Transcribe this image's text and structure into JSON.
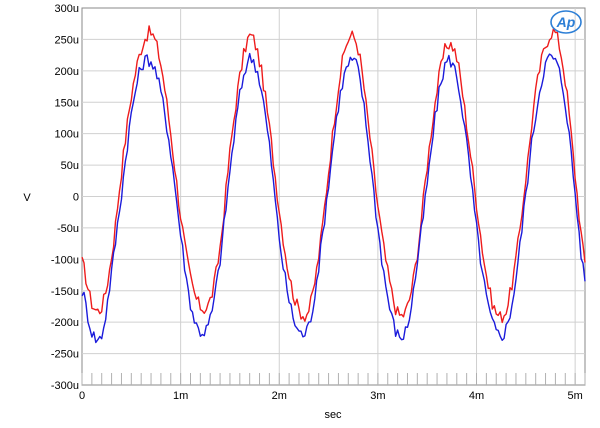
{
  "chart_data": {
    "type": "line",
    "title": "",
    "xlabel": "sec",
    "ylabel": "V",
    "xlim": [
      0,
      0.0051
    ],
    "ylim": [
      -0.0003,
      0.0003
    ],
    "grid": true,
    "logo_text": "Ap",
    "x_ticks": [
      {
        "value": 0,
        "label": "0"
      },
      {
        "value": 0.001,
        "label": "1m"
      },
      {
        "value": 0.002,
        "label": "2m"
      },
      {
        "value": 0.003,
        "label": "3m"
      },
      {
        "value": 0.004,
        "label": "4m"
      },
      {
        "value": 0.005,
        "label": "5m"
      }
    ],
    "y_ticks": [
      {
        "value": 0.0003,
        "label": "300u"
      },
      {
        "value": 0.00025,
        "label": "250u"
      },
      {
        "value": 0.0002,
        "label": "200u"
      },
      {
        "value": 0.00015,
        "label": "150u"
      },
      {
        "value": 0.0001,
        "label": "100u"
      },
      {
        "value": 5e-05,
        "label": "50u"
      },
      {
        "value": 0,
        "label": "0"
      },
      {
        "value": -5e-05,
        "label": "-50u"
      },
      {
        "value": -0.0001,
        "label": "-100u"
      },
      {
        "value": -0.00015,
        "label": "-150u"
      },
      {
        "value": -0.0002,
        "label": "-200u"
      },
      {
        "value": -0.00025,
        "label": "-250u"
      },
      {
        "value": -0.0003,
        "label": "-300u"
      }
    ],
    "series": [
      {
        "color": "#ee1c1c",
        "x": [
          0,
          0.0001,
          0.0002,
          0.0003,
          0.0004,
          0.0005,
          0.0006,
          0.0007,
          0.0008,
          0.0009,
          0.001,
          0.0011,
          0.0012,
          0.0013,
          0.0014,
          0.0015,
          0.0016,
          0.0017,
          0.0018,
          0.0019,
          0.002,
          0.0021,
          0.0022,
          0.0023,
          0.0024,
          0.0025,
          0.0026,
          0.0027,
          0.0028,
          0.0029,
          0.003,
          0.0031,
          0.0032,
          0.0033,
          0.0034,
          0.0035,
          0.0036,
          0.0037,
          0.0038,
          0.0039,
          0.004,
          0.0041,
          0.0042,
          0.0043,
          0.0044,
          0.0045,
          0.0046,
          0.0047,
          0.0048,
          0.0049,
          0.005,
          0.0051
        ],
        "y": [
          -0.000105,
          -0.00017,
          -0.000175,
          -9.5e-05,
          4e-05,
          0.00016,
          0.000235,
          0.00026,
          0.00021,
          0.0001,
          -3e-05,
          -0.00013,
          -0.000175,
          -0.000165,
          -8e-05,
          7e-05,
          0.00019,
          0.000255,
          0.000215,
          0.00011,
          -2e-05,
          -0.000125,
          -0.00018,
          -0.00018,
          -9.5e-05,
          4e-05,
          0.000175,
          0.00025,
          0.000235,
          0.00012,
          -1.5e-05,
          -0.00012,
          -0.000185,
          -0.000175,
          -9e-05,
          5e-05,
          0.00017,
          0.00024,
          0.00022,
          0.000115,
          -1e-05,
          -0.000125,
          -0.000185,
          -0.00018,
          -0.0001,
          3e-05,
          0.000165,
          0.00024,
          0.00026,
          0.000185,
          3.5e-05,
          -0.000105
        ]
      },
      {
        "color": "#1b1bdb",
        "x": [
          0,
          0.0001,
          0.0002,
          0.0003,
          0.0004,
          0.0005,
          0.0006,
          0.0007,
          0.0008,
          0.0009,
          0.001,
          0.0011,
          0.0012,
          0.0013,
          0.0014,
          0.0015,
          0.0016,
          0.0017,
          0.0018,
          0.0019,
          0.002,
          0.0021,
          0.0022,
          0.0023,
          0.0024,
          0.0025,
          0.0026,
          0.0027,
          0.0028,
          0.0029,
          0.003,
          0.0031,
          0.0032,
          0.0033,
          0.0034,
          0.0035,
          0.0036,
          0.0037,
          0.0038,
          0.0039,
          0.004,
          0.0041,
          0.0042,
          0.0043,
          0.0044,
          0.0045,
          0.0046,
          0.0047,
          0.0048,
          0.0049,
          0.005,
          0.0051
        ],
        "y": [
          -0.00015,
          -0.000215,
          -0.00022,
          -0.00012,
          5e-06,
          0.00013,
          0.000205,
          0.000215,
          0.000165,
          7e-05,
          -6e-05,
          -0.00017,
          -0.000215,
          -0.000195,
          -0.0001,
          4e-05,
          0.00016,
          0.00022,
          0.000185,
          8e-05,
          -6.5e-05,
          -0.000165,
          -0.000215,
          -0.000205,
          -0.00011,
          2e-05,
          0.000145,
          0.00021,
          0.0002,
          9e-05,
          -5e-05,
          -0.00016,
          -0.00022,
          -0.000205,
          -0.000105,
          2e-05,
          0.000145,
          0.000215,
          0.00019,
          8.5e-05,
          -5e-05,
          -0.00016,
          -0.000215,
          -0.00021,
          -0.00013,
          5e-06,
          0.00013,
          0.00021,
          0.000215,
          0.00015,
          5e-06,
          -0.000135
        ]
      }
    ]
  }
}
